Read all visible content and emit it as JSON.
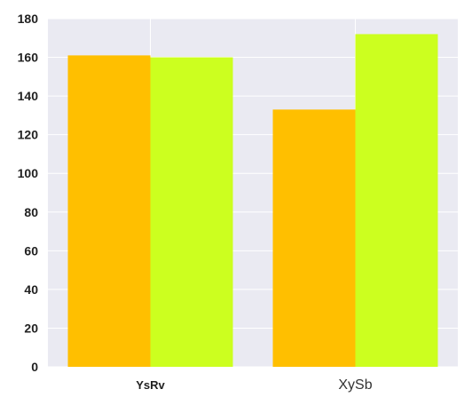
{
  "chart_data": {
    "type": "bar",
    "categories": [
      "YsRv",
      "XySb"
    ],
    "series": [
      {
        "values": [
          161,
          133
        ],
        "color": "#FFBF00"
      },
      {
        "values": [
          160,
          172
        ],
        "color": "#CCFF1F"
      }
    ],
    "ylim": [
      0,
      180
    ],
    "yticks": [
      "0",
      "20",
      "40",
      "60",
      "80",
      "100",
      "120",
      "140",
      "160",
      "180"
    ],
    "grid": true,
    "background": "#EAEAF2",
    "title": "",
    "xlabel": "",
    "ylabel": ""
  }
}
